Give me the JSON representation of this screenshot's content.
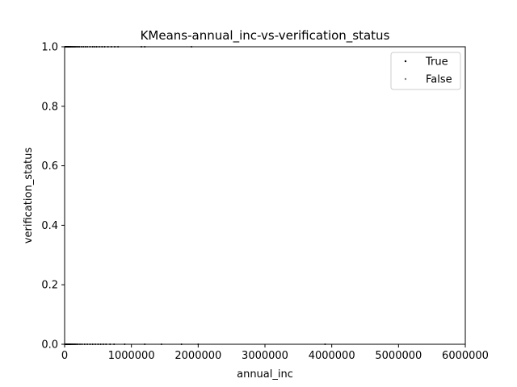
{
  "chart_data": {
    "type": "scatter",
    "title": "KMeans-annual_inc-vs-verification_status",
    "xlabel": "annual_inc",
    "ylabel": "verification_status",
    "xlim": [
      0,
      6000000
    ],
    "ylim": [
      0,
      1.0
    ],
    "x_ticks": [
      0,
      1000000,
      2000000,
      3000000,
      4000000,
      5000000,
      6000000
    ],
    "x_tick_labels": [
      "0",
      "1000000",
      "2000000",
      "3000000",
      "4000000",
      "5000000",
      "6000000"
    ],
    "y_ticks": [
      0.0,
      0.2,
      0.4,
      0.6,
      0.8,
      1.0
    ],
    "y_tick_labels": [
      "0.0",
      "0.2",
      "0.4",
      "0.6",
      "0.8",
      "1.0"
    ],
    "grid": false,
    "legend_position": "top-right",
    "series": [
      {
        "name": "True",
        "color": "#000000",
        "points": [
          [
            5000,
            1
          ],
          [
            12000,
            1
          ],
          [
            20000,
            1
          ],
          [
            28000,
            1
          ],
          [
            35000,
            1
          ],
          [
            42000,
            1
          ],
          [
            50000,
            1
          ],
          [
            58000,
            1
          ],
          [
            65000,
            1
          ],
          [
            72000,
            1
          ],
          [
            80000,
            1
          ],
          [
            90000,
            1
          ],
          [
            100000,
            1
          ],
          [
            115000,
            1
          ],
          [
            130000,
            1
          ],
          [
            145000,
            1
          ],
          [
            160000,
            1
          ],
          [
            180000,
            1
          ],
          [
            200000,
            1
          ],
          [
            220000,
            1
          ],
          [
            250000,
            1
          ],
          [
            280000,
            1
          ],
          [
            310000,
            1
          ],
          [
            340000,
            1
          ],
          [
            380000,
            1
          ],
          [
            420000,
            1
          ],
          [
            450000,
            1
          ],
          [
            480000,
            1
          ],
          [
            520000,
            1
          ],
          [
            560000,
            1
          ],
          [
            600000,
            1
          ],
          [
            650000,
            1
          ],
          [
            700000,
            1
          ],
          [
            750000,
            1
          ],
          [
            800000,
            1
          ],
          [
            1150000,
            1
          ],
          [
            1200000,
            1
          ],
          [
            1900000,
            1
          ],
          [
            5000,
            0
          ],
          [
            12000,
            0
          ],
          [
            20000,
            0
          ],
          [
            28000,
            0
          ],
          [
            35000,
            0
          ],
          [
            42000,
            0
          ],
          [
            50000,
            0
          ],
          [
            58000,
            0
          ],
          [
            65000,
            0
          ],
          [
            72000,
            0
          ],
          [
            80000,
            0
          ],
          [
            90000,
            0
          ],
          [
            100000,
            0
          ],
          [
            115000,
            0
          ],
          [
            130000,
            0
          ],
          [
            145000,
            0
          ],
          [
            160000,
            0
          ],
          [
            180000,
            0
          ],
          [
            200000,
            0
          ],
          [
            230000,
            0
          ],
          [
            260000,
            0
          ],
          [
            300000,
            0
          ],
          [
            340000,
            0
          ],
          [
            380000,
            0
          ],
          [
            420000,
            0
          ],
          [
            460000,
            0
          ],
          [
            500000,
            0
          ],
          [
            540000,
            0
          ],
          [
            580000,
            0
          ],
          [
            620000,
            0
          ],
          [
            680000,
            0
          ],
          [
            740000,
            0
          ],
          [
            900000,
            0
          ],
          [
            1200000,
            0
          ],
          [
            1450000,
            0
          ],
          [
            1750000,
            0
          ],
          [
            2000000,
            0
          ],
          [
            3900000,
            0
          ]
        ]
      },
      {
        "name": "False",
        "color": "#808080",
        "points": []
      }
    ]
  }
}
